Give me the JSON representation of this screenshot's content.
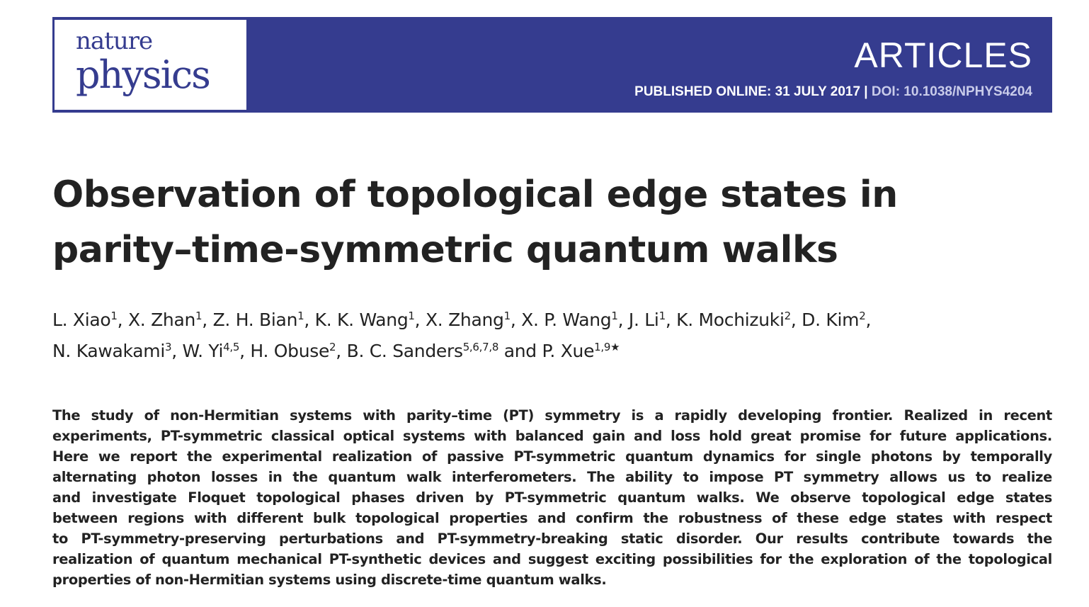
{
  "journal": {
    "logo_line1": "nature",
    "logo_line2": "physics",
    "section": "ARTICLES",
    "published": "PUBLISHED ONLINE: 31 JULY 2017 |",
    "doi": "DOI: 10.1038/NPHYS4204"
  },
  "colors": {
    "banner": "#353c8f",
    "text": "#222222"
  },
  "article": {
    "title_lines": [
      "Observation of topological edge states in",
      "parity–time-symmetric quantum walks"
    ],
    "authors": [
      {
        "name": "L. Xiao",
        "aff": "1"
      },
      {
        "name": "X. Zhan",
        "aff": "1"
      },
      {
        "name": "Z. H. Bian",
        "aff": "1"
      },
      {
        "name": "K. K. Wang",
        "aff": "1"
      },
      {
        "name": "X. Zhang",
        "aff": "1"
      },
      {
        "name": "X. P. Wang",
        "aff": "1"
      },
      {
        "name": "J. Li",
        "aff": "1"
      },
      {
        "name": "K. Mochizuki",
        "aff": "2"
      },
      {
        "name": "D. Kim",
        "aff": "2"
      },
      {
        "name": "N. Kawakami",
        "aff": "3"
      },
      {
        "name": "W. Yi",
        "aff": "4,5"
      },
      {
        "name": "H. Obuse",
        "aff": "2"
      },
      {
        "name": "B. C. Sanders",
        "aff": "5,6,7,8"
      },
      {
        "name": "P. Xue",
        "aff": "1,9★"
      }
    ],
    "author_connector": "and",
    "abstract_lines": [
      "The study of non-Hermitian systems with parity–time (PT) symmetry is a rapidly developing frontier. Realized in recent",
      "experiments, PT-symmetric classical optical systems with balanced gain and loss hold great promise for future applications.",
      "Here we report the experimental realization of passive PT-symmetric quantum dynamics for single photons by temporally",
      "alternating photon losses in the quantum walk interferometers. The ability to impose PT symmetry allows us to realize",
      "and investigate Floquet topological phases driven by PT-symmetric quantum walks. We observe topological edge states",
      "between regions with different bulk topological properties and confirm the robustness of these edge states with respect",
      "to PT-symmetry-preserving perturbations and PT-symmetry-breaking static disorder. Our results contribute towards the",
      "realization of quantum mechanical PT-synthetic devices and suggest exciting possibilities for the exploration of the topological",
      "properties of non-Hermitian systems using discrete-time quantum walks."
    ]
  }
}
